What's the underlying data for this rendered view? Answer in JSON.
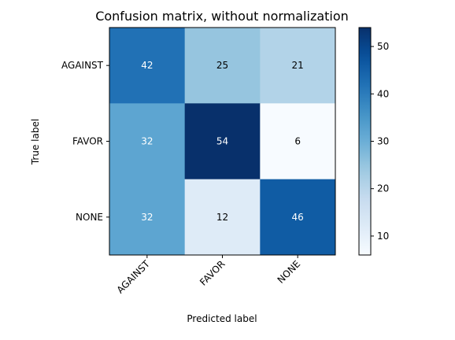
{
  "chart_data": {
    "type": "heatmap",
    "title": "Confusion matrix, without normalization",
    "xlabel": "Predicted label",
    "ylabel": "True label",
    "x_categories": [
      "AGAINST",
      "FAVOR",
      "NONE"
    ],
    "y_categories": [
      "AGAINST",
      "FAVOR",
      "NONE"
    ],
    "values": [
      [
        42,
        25,
        21
      ],
      [
        32,
        54,
        6
      ],
      [
        32,
        12,
        46
      ]
    ],
    "colormap": "Blues",
    "color_range": [
      6,
      54
    ],
    "colorbar_ticks": [
      10,
      20,
      30,
      40,
      50
    ],
    "grid": false
  }
}
